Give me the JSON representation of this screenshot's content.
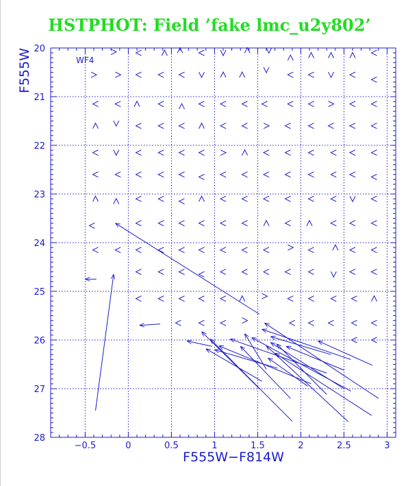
{
  "title": "HSTPHOT: Field ’fake lmc_u2y802’",
  "colors": {
    "title": "#22dd22",
    "axes": "#1a1acc",
    "marks": "#1a1acc"
  },
  "chart_data": {
    "type": "quiver",
    "panel_label": "WF4",
    "xlabel": "F555W−F814W",
    "ylabel": "F555W",
    "xlim": [
      -0.9,
      3.1
    ],
    "ylim": [
      28,
      20
    ],
    "y_inverted": true,
    "grid": true,
    "grid_style": "dotted",
    "x_grid": [
      -0.5,
      0,
      0.5,
      1,
      1.5,
      2,
      2.5,
      3
    ],
    "y_grid": [
      20,
      21,
      22,
      23,
      24,
      25,
      26,
      27,
      28
    ],
    "x_ticks": [
      {
        "v": -0.5,
        "label": "−0.5"
      },
      {
        "v": 0,
        "label": "0"
      },
      {
        "v": 0.5,
        "label": "0.5"
      },
      {
        "v": 1,
        "label": "1"
      },
      {
        "v": 1.5,
        "label": "1.5"
      },
      {
        "v": 2,
        "label": "2"
      },
      {
        "v": 2.5,
        "label": "2.5"
      },
      {
        "v": 3,
        "label": "3"
      }
    ],
    "y_ticks": [
      {
        "v": 20,
        "label": "20"
      },
      {
        "v": 21,
        "label": "21"
      },
      {
        "v": 22,
        "label": "22"
      },
      {
        "v": 23,
        "label": "23"
      },
      {
        "v": 24,
        "label": "24"
      },
      {
        "v": 25,
        "label": "25"
      },
      {
        "v": 26,
        "label": "26"
      },
      {
        "v": 27,
        "label": "27"
      },
      {
        "v": 28,
        "label": "28"
      }
    ],
    "x_minor_step": 0.1,
    "y_minor_step": 0.1,
    "arrows": [
      {
        "x0": -0.38,
        "y0": 27.45,
        "x1": -0.17,
        "y1": 24.65
      },
      {
        "x0": -0.37,
        "y0": 24.75,
        "x1": -0.5,
        "y1": 24.75
      },
      {
        "x0": 1.52,
        "y0": 25.47,
        "x1": -0.15,
        "y1": 23.6
      },
      {
        "x0": 0.37,
        "y0": 25.67,
        "x1": 0.13,
        "y1": 25.7
      },
      {
        "x0": 0.97,
        "y0": 26.13,
        "x1": 0.68,
        "y1": 26.02
      },
      {
        "x0": 1.52,
        "y0": 27.0,
        "x1": 0.85,
        "y1": 25.83
      },
      {
        "x0": 1.55,
        "y0": 26.85,
        "x1": 0.9,
        "y1": 26.18
      },
      {
        "x0": 1.9,
        "y0": 27.67,
        "x1": 0.95,
        "y1": 25.98
      },
      {
        "x0": 1.73,
        "y0": 26.58,
        "x1": 1.0,
        "y1": 26.2
      },
      {
        "x0": 2.12,
        "y0": 26.9,
        "x1": 1.05,
        "y1": 26.12
      },
      {
        "x0": 2.3,
        "y0": 26.68,
        "x1": 1.18,
        "y1": 25.98
      },
      {
        "x0": 1.6,
        "y0": 26.6,
        "x1": 1.35,
        "y1": 25.87
      },
      {
        "x0": 2.58,
        "y0": 27.05,
        "x1": 1.43,
        "y1": 25.95
      },
      {
        "x0": 1.88,
        "y0": 27.2,
        "x1": 1.3,
        "y1": 26.13
      },
      {
        "x0": 2.58,
        "y0": 26.4,
        "x1": 1.55,
        "y1": 25.78
      },
      {
        "x0": 2.5,
        "y0": 27.0,
        "x1": 1.65,
        "y1": 26.05
      },
      {
        "x0": 2.08,
        "y0": 26.95,
        "x1": 1.62,
        "y1": 26.37
      },
      {
        "x0": 2.55,
        "y0": 27.68,
        "x1": 1.6,
        "y1": 26.12
      },
      {
        "x0": 2.82,
        "y0": 27.55,
        "x1": 1.7,
        "y1": 26.27
      },
      {
        "x0": 2.3,
        "y0": 27.12,
        "x1": 1.72,
        "y1": 26.08
      },
      {
        "x0": 2.9,
        "y0": 27.2,
        "x1": 1.58,
        "y1": 25.65
      },
      {
        "x0": 2.5,
        "y0": 26.62,
        "x1": 1.83,
        "y1": 26.13
      },
      {
        "x0": 2.83,
        "y0": 26.52,
        "x1": 2.2,
        "y1": 26.02
      },
      {
        "x0": 2.35,
        "y0": 26.3,
        "x1": 1.65,
        "y1": 25.93
      }
    ],
    "small_arrows": [
      {
        "x": -0.17,
        "y": 20.08,
        "dir": "r"
      },
      {
        "x": 0.12,
        "y": 20.1,
        "dir": "l"
      },
      {
        "x": 0.42,
        "y": 20.1,
        "dir": "u"
      },
      {
        "x": 0.6,
        "y": 20.05,
        "dir": "u"
      },
      {
        "x": 0.85,
        "y": 20.1,
        "dir": "l"
      },
      {
        "x": 1.1,
        "y": 20.1,
        "dir": "d"
      },
      {
        "x": 1.38,
        "y": 20.05,
        "dir": "u"
      },
      {
        "x": 1.63,
        "y": 20.05,
        "dir": "d"
      },
      {
        "x": 1.88,
        "y": 20.2,
        "dir": "u"
      },
      {
        "x": 2.12,
        "y": 20.15,
        "dir": "u"
      },
      {
        "x": 2.35,
        "y": 20.15,
        "dir": "u"
      },
      {
        "x": 2.6,
        "y": 20.15,
        "dir": "u"
      },
      {
        "x": 2.85,
        "y": 20.1,
        "dir": "l"
      },
      {
        "x": -0.4,
        "y": 20.55,
        "dir": "r"
      },
      {
        "x": -0.12,
        "y": 20.55,
        "dir": "r"
      },
      {
        "x": 0.12,
        "y": 20.55,
        "dir": "l"
      },
      {
        "x": 0.38,
        "y": 20.55,
        "dir": "l"
      },
      {
        "x": 0.62,
        "y": 20.55,
        "dir": "l"
      },
      {
        "x": 0.85,
        "y": 20.55,
        "dir": "d"
      },
      {
        "x": 1.1,
        "y": 20.55,
        "dir": "u"
      },
      {
        "x": 1.32,
        "y": 20.55,
        "dir": "u"
      },
      {
        "x": 1.6,
        "y": 20.45,
        "dir": "d"
      },
      {
        "x": 1.88,
        "y": 20.55,
        "dir": "l"
      },
      {
        "x": 2.12,
        "y": 20.55,
        "dir": "l"
      },
      {
        "x": 2.35,
        "y": 20.55,
        "dir": "d"
      },
      {
        "x": 2.6,
        "y": 20.55,
        "dir": "l"
      },
      {
        "x": 2.85,
        "y": 20.65,
        "dir": "l"
      },
      {
        "x": -0.38,
        "y": 21.15,
        "dir": "l"
      },
      {
        "x": -0.12,
        "y": 21.15,
        "dir": "l"
      },
      {
        "x": 0.1,
        "y": 21.15,
        "dir": "u"
      },
      {
        "x": 0.38,
        "y": 21.15,
        "dir": "l"
      },
      {
        "x": 0.62,
        "y": 21.2,
        "dir": "u"
      },
      {
        "x": 0.85,
        "y": 21.15,
        "dir": "l"
      },
      {
        "x": 1.1,
        "y": 21.15,
        "dir": "l"
      },
      {
        "x": 1.35,
        "y": 21.15,
        "dir": "l"
      },
      {
        "x": 1.58,
        "y": 21.15,
        "dir": "l"
      },
      {
        "x": 1.88,
        "y": 21.15,
        "dir": "l"
      },
      {
        "x": 2.12,
        "y": 21.15,
        "dir": "l"
      },
      {
        "x": 2.35,
        "y": 21.15,
        "dir": "r"
      },
      {
        "x": 2.6,
        "y": 21.15,
        "dir": "l"
      },
      {
        "x": 2.85,
        "y": 21.15,
        "dir": "l"
      },
      {
        "x": -0.38,
        "y": 21.6,
        "dir": "u"
      },
      {
        "x": -0.14,
        "y": 21.55,
        "dir": "d"
      },
      {
        "x": 0.12,
        "y": 21.6,
        "dir": "l"
      },
      {
        "x": 0.38,
        "y": 21.6,
        "dir": "l"
      },
      {
        "x": 0.62,
        "y": 21.6,
        "dir": "l"
      },
      {
        "x": 0.85,
        "y": 21.6,
        "dir": "u"
      },
      {
        "x": 1.1,
        "y": 21.6,
        "dir": "l"
      },
      {
        "x": 1.35,
        "y": 21.6,
        "dir": "l"
      },
      {
        "x": 1.6,
        "y": 21.6,
        "dir": "r"
      },
      {
        "x": 1.85,
        "y": 21.6,
        "dir": "l"
      },
      {
        "x": 2.12,
        "y": 21.6,
        "dir": "l"
      },
      {
        "x": 2.35,
        "y": 21.6,
        "dir": "l"
      },
      {
        "x": 2.6,
        "y": 21.6,
        "dir": "l"
      },
      {
        "x": 2.85,
        "y": 21.6,
        "dir": "l"
      },
      {
        "x": -0.38,
        "y": 22.15,
        "dir": "l"
      },
      {
        "x": -0.14,
        "y": 22.15,
        "dir": "d"
      },
      {
        "x": 0.12,
        "y": 22.15,
        "dir": "l"
      },
      {
        "x": 0.38,
        "y": 22.15,
        "dir": "l"
      },
      {
        "x": 0.62,
        "y": 22.15,
        "dir": "l"
      },
      {
        "x": 0.85,
        "y": 22.15,
        "dir": "l"
      },
      {
        "x": 1.1,
        "y": 22.15,
        "dir": "r"
      },
      {
        "x": 1.35,
        "y": 22.15,
        "dir": "u"
      },
      {
        "x": 1.6,
        "y": 22.15,
        "dir": "l"
      },
      {
        "x": 1.85,
        "y": 22.15,
        "dir": "l"
      },
      {
        "x": 2.12,
        "y": 22.15,
        "dir": "l"
      },
      {
        "x": 2.38,
        "y": 22.15,
        "dir": "l"
      },
      {
        "x": 2.6,
        "y": 22.15,
        "dir": "l"
      },
      {
        "x": 2.85,
        "y": 22.15,
        "dir": "l"
      },
      {
        "x": -0.38,
        "y": 22.6,
        "dir": "l"
      },
      {
        "x": -0.12,
        "y": 22.6,
        "dir": "l"
      },
      {
        "x": 0.12,
        "y": 22.6,
        "dir": "l"
      },
      {
        "x": 0.38,
        "y": 22.6,
        "dir": "l"
      },
      {
        "x": 0.62,
        "y": 22.6,
        "dir": "l"
      },
      {
        "x": 0.85,
        "y": 22.65,
        "dir": "l"
      },
      {
        "x": 1.1,
        "y": 22.6,
        "dir": "l"
      },
      {
        "x": 1.35,
        "y": 22.6,
        "dir": "l"
      },
      {
        "x": 1.6,
        "y": 22.6,
        "dir": "l"
      },
      {
        "x": 1.85,
        "y": 22.6,
        "dir": "l"
      },
      {
        "x": 2.12,
        "y": 22.6,
        "dir": "l"
      },
      {
        "x": 2.38,
        "y": 22.6,
        "dir": "l"
      },
      {
        "x": 2.6,
        "y": 22.6,
        "dir": "l"
      },
      {
        "x": 2.85,
        "y": 22.65,
        "dir": "l"
      },
      {
        "x": -0.38,
        "y": 23.1,
        "dir": "u"
      },
      {
        "x": -0.14,
        "y": 23.15,
        "dir": "u"
      },
      {
        "x": 0.12,
        "y": 23.1,
        "dir": "l"
      },
      {
        "x": 0.38,
        "y": 23.1,
        "dir": "l"
      },
      {
        "x": 0.62,
        "y": 23.15,
        "dir": "l"
      },
      {
        "x": 0.85,
        "y": 23.1,
        "dir": "u"
      },
      {
        "x": 1.1,
        "y": 23.1,
        "dir": "l"
      },
      {
        "x": 1.35,
        "y": 23.1,
        "dir": "l"
      },
      {
        "x": 1.6,
        "y": 23.1,
        "dir": "l"
      },
      {
        "x": 1.85,
        "y": 23.1,
        "dir": "l"
      },
      {
        "x": 2.12,
        "y": 23.1,
        "dir": "l"
      },
      {
        "x": 2.38,
        "y": 23.1,
        "dir": "l"
      },
      {
        "x": 2.6,
        "y": 23.1,
        "dir": "d"
      },
      {
        "x": 2.85,
        "y": 23.1,
        "dir": "l"
      },
      {
        "x": -0.42,
        "y": 23.65,
        "dir": "l"
      },
      {
        "x": 0.12,
        "y": 23.6,
        "dir": "l"
      },
      {
        "x": 0.38,
        "y": 23.6,
        "dir": "l"
      },
      {
        "x": 0.62,
        "y": 23.6,
        "dir": "l"
      },
      {
        "x": 0.85,
        "y": 23.6,
        "dir": "l"
      },
      {
        "x": 1.1,
        "y": 23.6,
        "dir": "l"
      },
      {
        "x": 1.35,
        "y": 23.6,
        "dir": "l"
      },
      {
        "x": 1.6,
        "y": 23.6,
        "dir": "u"
      },
      {
        "x": 1.85,
        "y": 23.6,
        "dir": "l"
      },
      {
        "x": 2.1,
        "y": 23.6,
        "dir": "u"
      },
      {
        "x": 2.38,
        "y": 23.6,
        "dir": "l"
      },
      {
        "x": 2.6,
        "y": 23.6,
        "dir": "l"
      },
      {
        "x": 2.85,
        "y": 23.6,
        "dir": "l"
      },
      {
        "x": -0.38,
        "y": 24.15,
        "dir": "l"
      },
      {
        "x": -0.12,
        "y": 24.15,
        "dir": "l"
      },
      {
        "x": 0.12,
        "y": 24.15,
        "dir": "l"
      },
      {
        "x": 0.38,
        "y": 24.15,
        "dir": "l"
      },
      {
        "x": 0.62,
        "y": 24.15,
        "dir": "l"
      },
      {
        "x": 0.85,
        "y": 24.15,
        "dir": "l"
      },
      {
        "x": 1.1,
        "y": 24.15,
        "dir": "l"
      },
      {
        "x": 1.35,
        "y": 24.15,
        "dir": "l"
      },
      {
        "x": 1.6,
        "y": 24.15,
        "dir": "l"
      },
      {
        "x": 1.88,
        "y": 24.1,
        "dir": "r"
      },
      {
        "x": 2.12,
        "y": 24.15,
        "dir": "l"
      },
      {
        "x": 2.4,
        "y": 24.1,
        "dir": "u"
      },
      {
        "x": 2.6,
        "y": 24.15,
        "dir": "l"
      },
      {
        "x": 2.85,
        "y": 24.15,
        "dir": "l"
      },
      {
        "x": 0.12,
        "y": 24.6,
        "dir": "l"
      },
      {
        "x": 0.38,
        "y": 24.6,
        "dir": "l"
      },
      {
        "x": 0.62,
        "y": 24.6,
        "dir": "l"
      },
      {
        "x": 0.85,
        "y": 24.65,
        "dir": "l"
      },
      {
        "x": 1.1,
        "y": 24.6,
        "dir": "l"
      },
      {
        "x": 1.35,
        "y": 24.6,
        "dir": "l"
      },
      {
        "x": 1.6,
        "y": 24.6,
        "dir": "l"
      },
      {
        "x": 1.85,
        "y": 24.6,
        "dir": "l"
      },
      {
        "x": 2.12,
        "y": 24.6,
        "dir": "l"
      },
      {
        "x": 2.38,
        "y": 24.65,
        "dir": "d"
      },
      {
        "x": 2.6,
        "y": 24.6,
        "dir": "l"
      },
      {
        "x": 2.85,
        "y": 24.6,
        "dir": "l"
      },
      {
        "x": 0.12,
        "y": 25.15,
        "dir": "l"
      },
      {
        "x": 0.38,
        "y": 25.15,
        "dir": "l"
      },
      {
        "x": 0.62,
        "y": 25.15,
        "dir": "l"
      },
      {
        "x": 0.85,
        "y": 25.15,
        "dir": "l"
      },
      {
        "x": 1.1,
        "y": 25.15,
        "dir": "l"
      },
      {
        "x": 1.32,
        "y": 25.15,
        "dir": "u"
      },
      {
        "x": 1.58,
        "y": 25.1,
        "dir": "r"
      },
      {
        "x": 1.88,
        "y": 25.15,
        "dir": "l"
      },
      {
        "x": 2.12,
        "y": 25.15,
        "dir": "l"
      },
      {
        "x": 2.38,
        "y": 25.15,
        "dir": "l"
      },
      {
        "x": 2.62,
        "y": 25.15,
        "dir": "l"
      },
      {
        "x": 2.85,
        "y": 25.15,
        "dir": "u"
      },
      {
        "x": 0.58,
        "y": 25.65,
        "dir": "l"
      },
      {
        "x": 0.85,
        "y": 25.65,
        "dir": "l"
      },
      {
        "x": 1.1,
        "y": 25.65,
        "dir": "l"
      },
      {
        "x": 1.35,
        "y": 25.6,
        "dir": "r"
      },
      {
        "x": 1.9,
        "y": 25.65,
        "dir": "l"
      },
      {
        "x": 2.12,
        "y": 25.65,
        "dir": "l"
      },
      {
        "x": 2.35,
        "y": 25.65,
        "dir": "l"
      },
      {
        "x": 2.62,
        "y": 25.65,
        "dir": "l"
      },
      {
        "x": 2.85,
        "y": 25.65,
        "dir": "l"
      },
      {
        "x": 2.62,
        "y": 26.0,
        "dir": "l"
      },
      {
        "x": 2.85,
        "y": 26.0,
        "dir": "l"
      }
    ]
  }
}
